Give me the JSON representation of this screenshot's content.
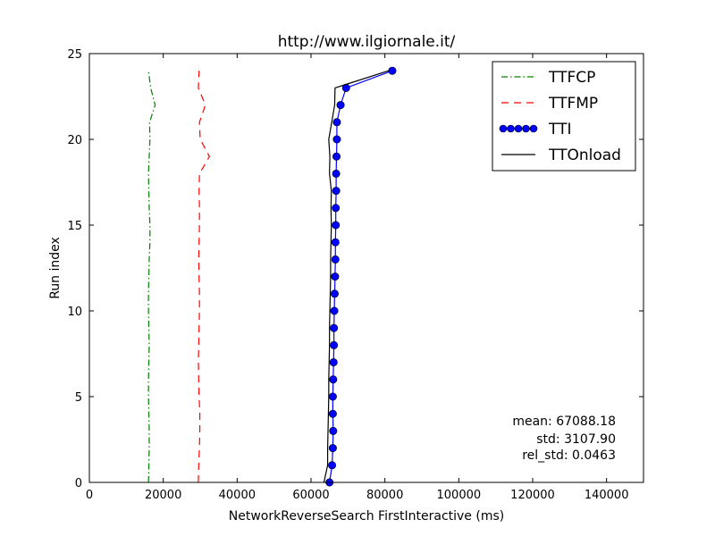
{
  "chart_data": {
    "type": "line",
    "title": "http://www.ilgiornale.it/",
    "xlabel": "NetworkReverseSearch FirstInteractive (ms)",
    "ylabel": "Run index",
    "xlim": [
      0,
      150000
    ],
    "ylim": [
      0,
      25
    ],
    "x_ticks": [
      "0",
      "20000",
      "40000",
      "60000",
      "80000",
      "100000",
      "120000",
      "140000"
    ],
    "y_ticks": [
      "0",
      "5",
      "10",
      "15",
      "20",
      "25"
    ],
    "legend_position": "top-right",
    "series": [
      {
        "name": "TTFCP",
        "color": "#008000",
        "linestyle": "dashdot",
        "x": [
          16000,
          16100,
          16200,
          16200,
          16100,
          16000,
          16000,
          16100,
          16200,
          16100,
          16000,
          16000,
          16100,
          16200,
          16400,
          16400,
          16200,
          16100,
          16000,
          16200,
          16400,
          16300,
          17800,
          16600,
          16000
        ],
        "y": [
          0,
          1,
          2,
          3,
          4,
          5,
          6,
          7,
          8,
          9,
          10,
          11,
          12,
          13,
          14,
          15,
          16,
          17,
          18,
          19,
          20,
          21,
          22,
          23,
          24
        ]
      },
      {
        "name": "TTFMP",
        "color": "#ff0000",
        "linestyle": "dashed",
        "x": [
          29500,
          29600,
          29800,
          29900,
          29900,
          29700,
          29600,
          29500,
          29600,
          29700,
          29800,
          29800,
          29700,
          29600,
          29700,
          29800,
          29800,
          29700,
          29800,
          32500,
          30000,
          29800,
          31400,
          29500,
          29700
        ],
        "y": [
          0,
          1,
          2,
          3,
          4,
          5,
          6,
          7,
          8,
          9,
          10,
          11,
          12,
          13,
          14,
          15,
          16,
          17,
          18,
          19,
          20,
          21,
          22,
          23,
          24
        ]
      },
      {
        "name": "TTI",
        "color": "#0000ff",
        "marker": "o",
        "x": [
          65000,
          65700,
          65900,
          66000,
          65900,
          65900,
          66000,
          66100,
          66200,
          66200,
          66300,
          66400,
          66500,
          66600,
          66600,
          66700,
          66700,
          66800,
          66800,
          66900,
          67000,
          67000,
          68000,
          69500,
          82000
        ],
        "y": [
          0,
          1,
          2,
          3,
          4,
          5,
          6,
          7,
          8,
          9,
          10,
          11,
          12,
          13,
          14,
          15,
          16,
          17,
          18,
          19,
          20,
          21,
          22,
          23,
          24
        ]
      },
      {
        "name": "TTOnload",
        "color": "#000000",
        "linestyle": "solid",
        "x": [
          63500,
          64500,
          64500,
          64600,
          64700,
          64800,
          64800,
          64900,
          65000,
          65000,
          65100,
          65200,
          65300,
          65300,
          65400,
          65500,
          65400,
          65500,
          65000,
          65100,
          64800,
          65600,
          66400,
          66500,
          81000
        ],
        "y": [
          0,
          1,
          2,
          3,
          4,
          5,
          6,
          7,
          8,
          9,
          10,
          11,
          12,
          13,
          14,
          15,
          16,
          17,
          18,
          19,
          20,
          21,
          22,
          23,
          24
        ]
      }
    ],
    "annotations": [
      "mean: 67088.18",
      "std: 3107.90",
      "rel_std: 0.0463"
    ]
  }
}
